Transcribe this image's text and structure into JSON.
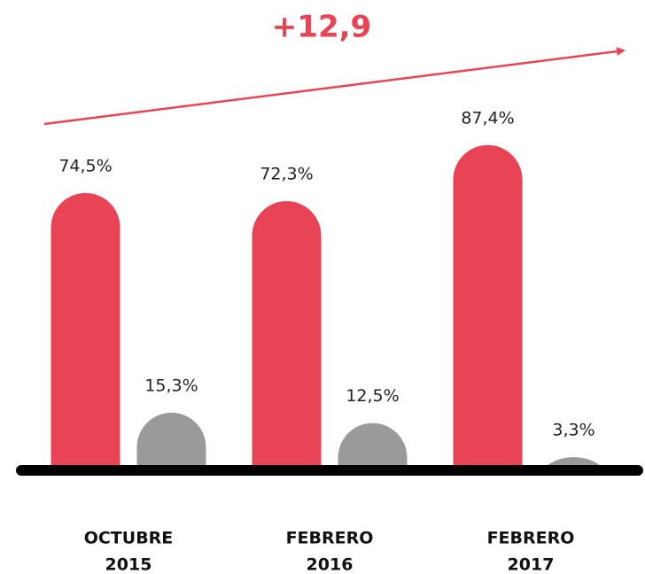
{
  "chart_data": {
    "type": "bar",
    "annotation": "+12,9",
    "categories": [
      [
        "OCTUBRE",
        "2015"
      ],
      [
        "FEBRERO",
        "2016"
      ],
      [
        "FEBRERO",
        "2017"
      ]
    ],
    "series": [
      {
        "color": "#e84455",
        "values": [
          74.5,
          72.3,
          87.4
        ],
        "value_labels": [
          "74,5%",
          "72,3%",
          "87,4%"
        ]
      },
      {
        "color": "#9a9a9a",
        "values": [
          15.3,
          12.5,
          3.3
        ],
        "value_labels": [
          "15,3%",
          "12,5%",
          "3,3%"
        ]
      }
    ]
  }
}
